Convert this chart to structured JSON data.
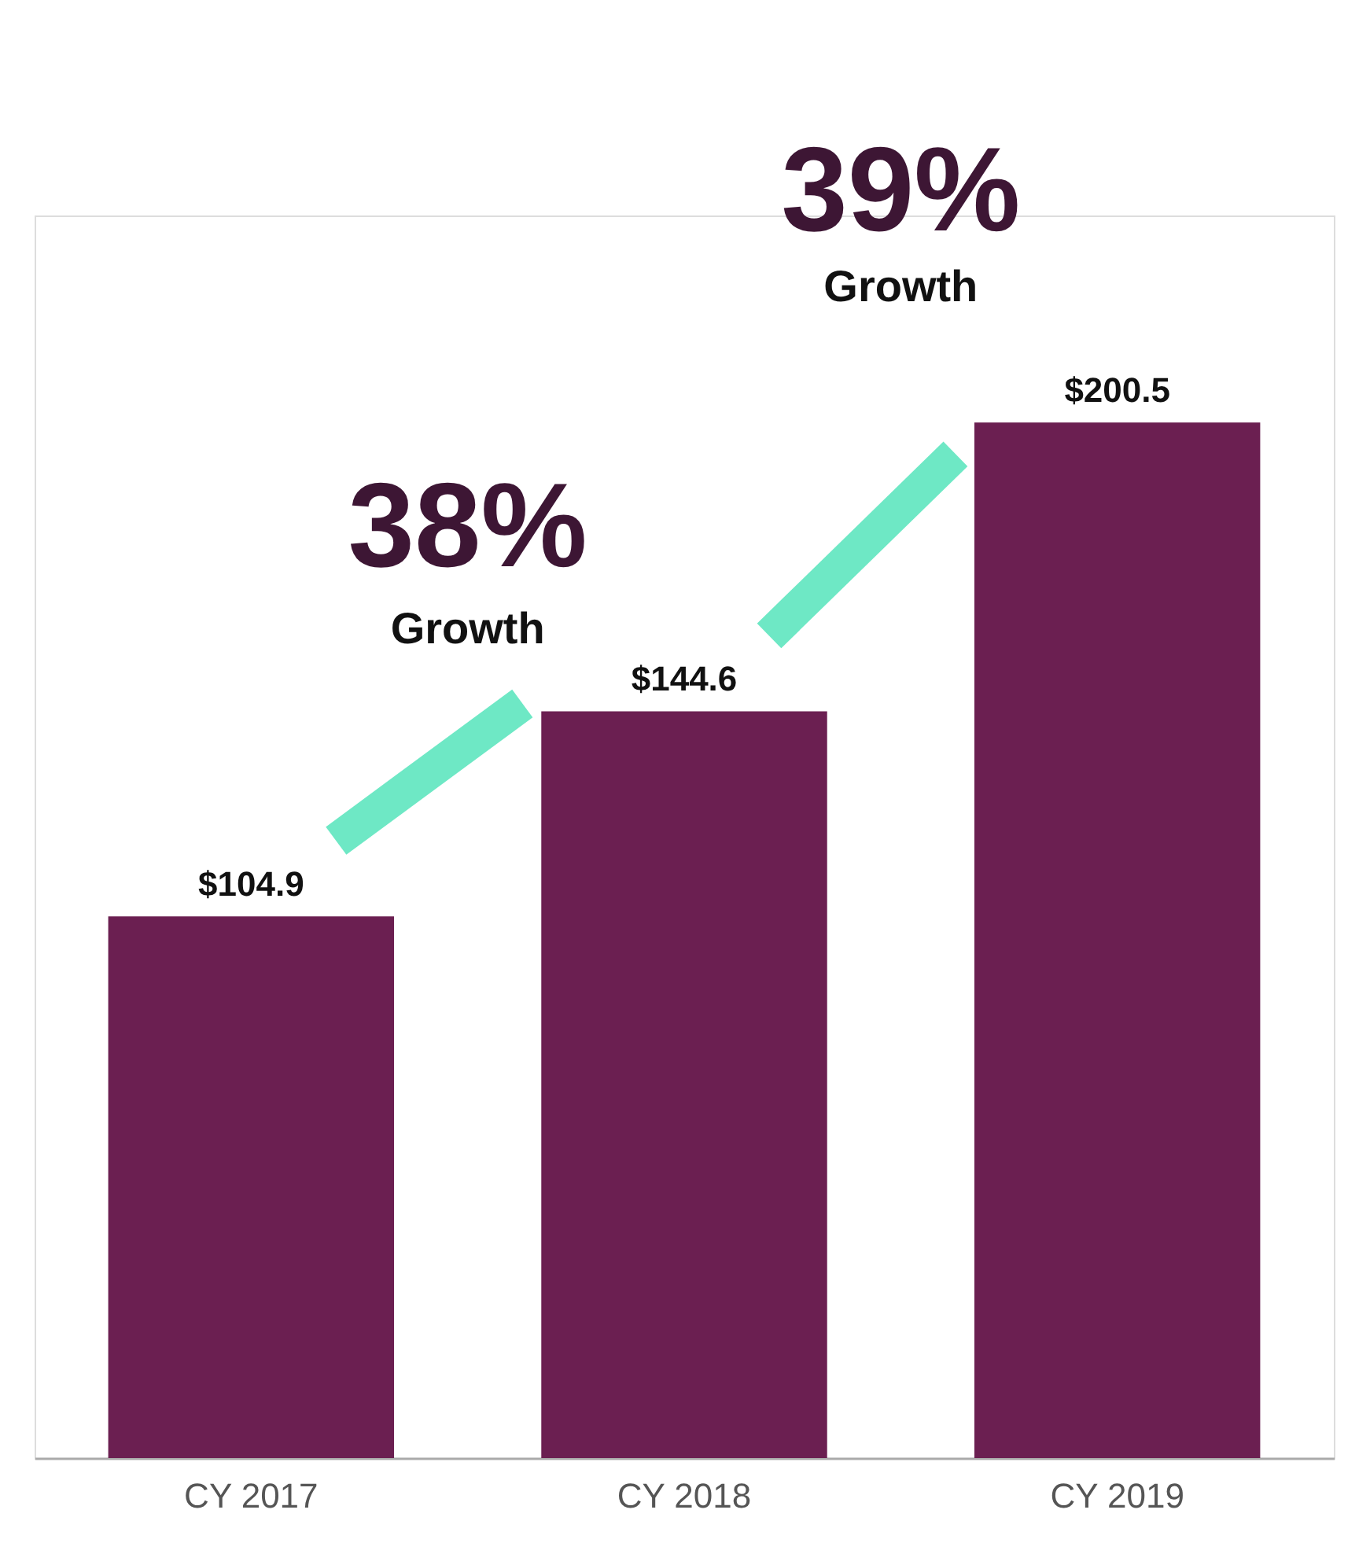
{
  "chart_data": {
    "type": "bar",
    "categories": [
      "CY 2017",
      "CY 2018",
      "CY 2019"
    ],
    "values": [
      104.9,
      144.6,
      200.5
    ],
    "value_labels": [
      "$104.9",
      "$144.6",
      "$200.5"
    ],
    "color": "#6b1f51",
    "annotations": [
      "38%",
      "Growth",
      "39%",
      "Growth"
    ],
    "grid": false
  }
}
